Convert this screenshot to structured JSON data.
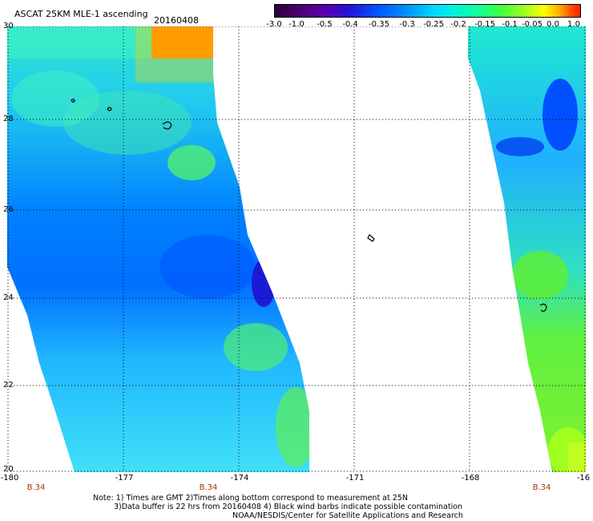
{
  "header": {
    "title": "ASCAT 25KM MLE-1 ascending",
    "date": "20160408"
  },
  "colorbar": {
    "labels": [
      "-3.0",
      "-1.0",
      "-0.5",
      "-0.4",
      "-0.35",
      "-0.3",
      "-0.25",
      "-0.2",
      "-0.15",
      "-0.1",
      "-0.05",
      "0.0",
      "1.0"
    ],
    "colors": [
      "#2b0038",
      "#5a00a8",
      "#0050ff",
      "#00d8ff",
      "#40ff40",
      "#ffff00",
      "#ff2000"
    ]
  },
  "axes": {
    "lat_labels": [
      "30",
      "28",
      "26",
      "24",
      "22",
      "20"
    ],
    "lon_labels": [
      "-180",
      "-177",
      "-174",
      "-171",
      "-168",
      "-16"
    ]
  },
  "orbit_labels": [
    "B.34",
    "B.34",
    "B.34"
  ],
  "notes": {
    "line1": "Note: 1) Times are GMT 2)Times along bottom correspond to measurement at 25N",
    "line2": "3)Data buffer is 22 hrs from 20160408 4) Black wind barbs indicate possible contamination",
    "line3": "NOAA/NESDIS/Center for Satellite Applications and Research"
  }
}
